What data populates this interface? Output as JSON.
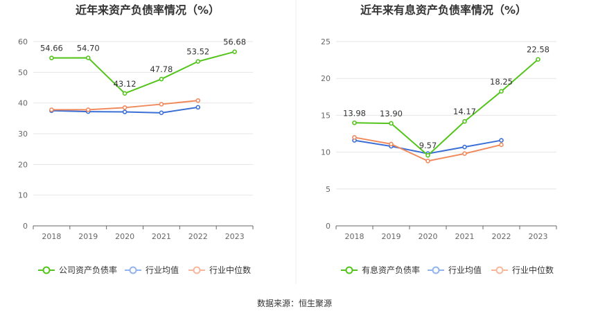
{
  "chart_data": [
    {
      "type": "line",
      "title": "近年来资产负债率情况（%）",
      "categories": [
        "2018",
        "2019",
        "2020",
        "2021",
        "2022",
        "2023"
      ],
      "ylim": [
        0,
        60
      ],
      "yticks": [
        "0",
        "10",
        "20",
        "30",
        "40",
        "50",
        "60"
      ],
      "grid": true,
      "legend_position": "bottom",
      "series": [
        {
          "name": "公司资产负债率",
          "color": "#52c41a",
          "values": [
            54.66,
            54.7,
            43.12,
            47.78,
            53.52,
            56.68
          ],
          "labels": [
            "54.66",
            "54.70",
            "43.12",
            "47.78",
            "53.52",
            "56.68"
          ]
        },
        {
          "name": "行业均值",
          "color": "#3b6fd6",
          "values": [
            37.5,
            37.2,
            37.1,
            36.8,
            38.6,
            null
          ]
        },
        {
          "name": "行业中位数",
          "color": "#f08a5d",
          "values": [
            37.8,
            37.8,
            38.5,
            39.6,
            40.8,
            null
          ]
        }
      ]
    },
    {
      "type": "line",
      "title": "近年来有息资产负债率情况（%）",
      "categories": [
        "2018",
        "2019",
        "2020",
        "2021",
        "2022",
        "2023"
      ],
      "ylim": [
        0,
        25
      ],
      "yticks": [
        "0",
        "5",
        "10",
        "15",
        "20",
        "25"
      ],
      "grid": true,
      "legend_position": "bottom",
      "series": [
        {
          "name": "有息资产负债率",
          "color": "#52c41a",
          "values": [
            13.98,
            13.9,
            9.57,
            14.17,
            18.25,
            22.58
          ],
          "labels": [
            "13.98",
            "13.90",
            "9.57",
            "14.17",
            "18.25",
            "22.58"
          ]
        },
        {
          "name": "行业均值",
          "color": "#3b6fd6",
          "values": [
            11.6,
            10.8,
            9.8,
            10.7,
            11.6,
            null
          ]
        },
        {
          "name": "行业中位数",
          "color": "#f08a5d",
          "values": [
            12.0,
            11.1,
            8.8,
            9.8,
            11.0,
            null
          ]
        }
      ]
    }
  ],
  "footer": {
    "source": "数据来源：恒生聚源"
  },
  "colors": {
    "legend_light_green": "#95de64",
    "legend_light_blue": "#91b4f0",
    "legend_light_orange": "#f8b79a"
  }
}
